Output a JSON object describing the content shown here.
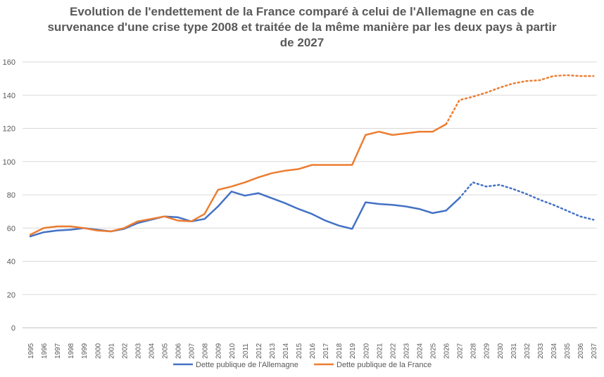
{
  "chart_data": {
    "type": "line",
    "title": "Evolution de l'endettement de la France comparé à celui de l'Allemagne en cas de survenance d'une crise type 2008 et traitée de la même manière par les deux pays à partir de 2027",
    "xlabel": "",
    "ylabel": "",
    "ylim": [
      0,
      160
    ],
    "yticks": [
      0,
      20,
      40,
      60,
      80,
      100,
      120,
      140,
      160
    ],
    "grid": true,
    "legend_position": "bottom",
    "categories": [
      "1995",
      "1996",
      "1997",
      "1998",
      "1999",
      "2000",
      "2001",
      "2002",
      "2003",
      "2004",
      "2005",
      "2006",
      "2007",
      "2008",
      "2009",
      "2010",
      "2011",
      "2012",
      "2013",
      "2014",
      "2015",
      "2016",
      "2017",
      "2018",
      "2019",
      "2020",
      "2021",
      "2022",
      "2023",
      "2024",
      "2025",
      "2026",
      "2027",
      "2028",
      "2029",
      "2030",
      "2031",
      "2032",
      "2033",
      "2034",
      "2035",
      "2036",
      "2037"
    ],
    "series": [
      {
        "name": "Dette publique de l'Allemagne",
        "color": "#4472C4",
        "solid_until": "2027",
        "values": [
          55,
          57.5,
          58.5,
          59,
          60,
          59,
          58,
          59.5,
          63,
          65,
          67,
          66.5,
          64,
          65.5,
          73,
          82,
          79.5,
          81,
          78,
          75,
          71.5,
          68.5,
          64.5,
          61.5,
          59.5,
          75.5,
          74.5,
          74,
          73,
          71.5,
          69,
          70.5,
          78,
          87.5,
          85,
          86,
          83.5,
          80.5,
          77,
          74,
          70.5,
          67,
          65
        ]
      },
      {
        "name": "Dette publique de la France",
        "color": "#ED7D31",
        "solid_until": "2026",
        "values": [
          56,
          60,
          61,
          61,
          60,
          58.5,
          58,
          60,
          64,
          65.5,
          67,
          64.5,
          64,
          68.5,
          83,
          85,
          87.5,
          90.5,
          93,
          94.5,
          95.5,
          98,
          98,
          98,
          98,
          116,
          118,
          116,
          117,
          118,
          118,
          122.5,
          137,
          139,
          141.5,
          144.5,
          147,
          148.5,
          149,
          151.5,
          152,
          151.5,
          151.5
        ]
      }
    ]
  }
}
